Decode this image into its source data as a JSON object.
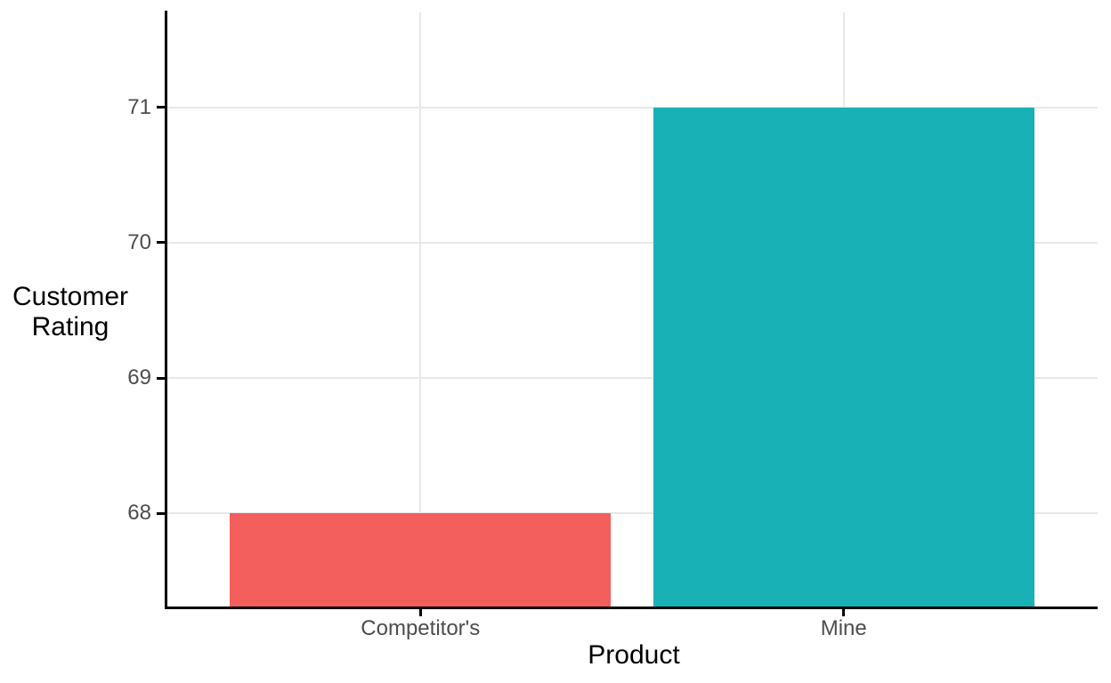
{
  "chart_data": {
    "type": "bar",
    "xlabel": "Product",
    "ylabel": "Customer Rating",
    "ylabel_lines": [
      "Customer",
      "Rating"
    ],
    "categories": [
      "Competitor's",
      "Mine"
    ],
    "series": [
      {
        "name": "Customer Rating",
        "values": [
          68,
          71
        ]
      }
    ],
    "values": [
      68,
      71
    ],
    "bar_colors": [
      "#F25F5C",
      "#18B1B6"
    ],
    "y_ticks": [
      68,
      69,
      70,
      71
    ],
    "ylim": [
      67.3,
      71.7
    ],
    "grid": "major gridlines only, horizontal and vertical",
    "legend": "none",
    "axis_lines": "black left and bottom axis lines with outward tick marks"
  },
  "colors": {
    "background": "#FFFFFF",
    "gridline": "#E8E8E8",
    "axis_line": "#000000",
    "tick_label": "#4D4D4D",
    "axis_title": "#000000",
    "bar_competitors": "#F25F5C",
    "bar_mine": "#18B1B6"
  }
}
